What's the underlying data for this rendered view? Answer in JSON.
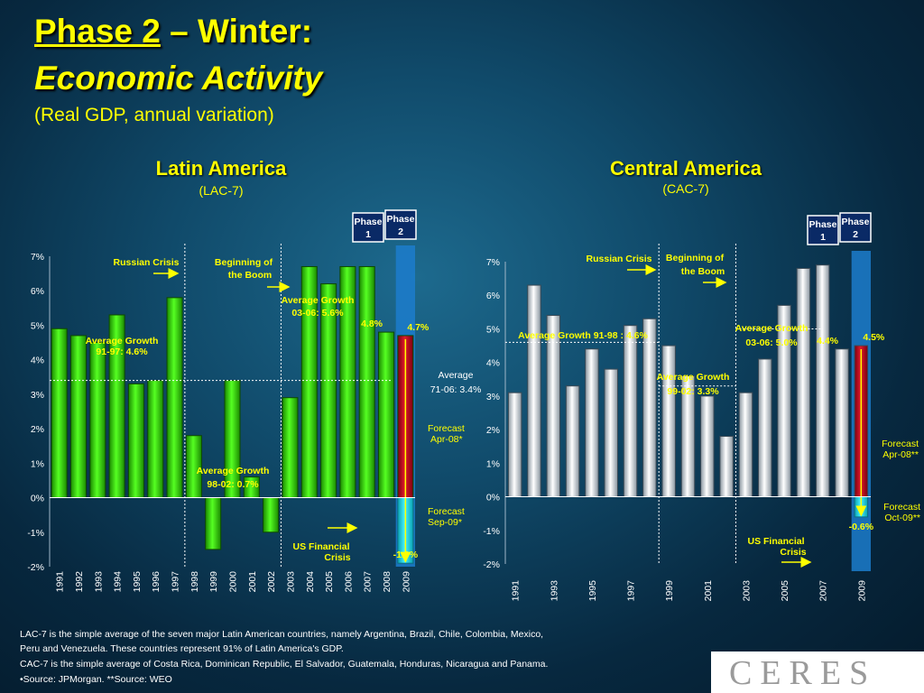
{
  "title": {
    "phase": "Phase 2",
    "rest": " – Winter:",
    "line2": "Economic Activity",
    "line3": "(Real GDP, annual variation)"
  },
  "footnotes": [
    "LAC-7 is the simple average of the seven major Latin American countries, namely Argentina, Brazil, Chile, Colombia, Mexico,",
    "Peru and Venezuela. These countries represent 91% of Latin America's GDP.",
    "CAC-7 is the simple average of Costa Rica, Dominican Republic, El Salvador, Guatemala, Honduras, Nicaragua and Panama.",
    "•Source: JPMorgan. **Source: WEO"
  ],
  "logo_text": "CERES",
  "colors": {
    "lac_bar": "#33dd00",
    "cac_bar": "#dde3e8",
    "forecast_red": "#cc1122",
    "forecast_cyan": "#22ddee",
    "title": "#ffff00",
    "phase_band": "#1c7ccc"
  },
  "chart_data": [
    {
      "type": "bar",
      "title": "Latin America",
      "subtitle": "(LAC-7)",
      "categories": [
        "1991",
        "1992",
        "1993",
        "1994",
        "1995",
        "1996",
        "1997",
        "1998",
        "1999",
        "2000",
        "2001",
        "2002",
        "2003",
        "2004",
        "2005",
        "2006",
        "2007",
        "2008",
        "2009"
      ],
      "values": [
        4.9,
        4.7,
        4.5,
        5.3,
        3.3,
        3.4,
        5.8,
        1.8,
        -1.5,
        3.4,
        0.6,
        -1.0,
        2.9,
        6.7,
        6.2,
        6.7,
        6.7,
        4.8,
        4.7
      ],
      "forecast_revision": {
        "category": "2009",
        "from": 4.7,
        "to": -1.9,
        "labels": [
          "4.7%",
          "-1.9%"
        ]
      },
      "ylim": [
        -2,
        7
      ],
      "yticks": [
        "7%",
        "6%",
        "5%",
        "4%",
        "3%",
        "2%",
        "1%",
        "0%",
        "-1%",
        "-2%"
      ],
      "data_labels": [
        "4.8%"
      ],
      "annotations": {
        "russian_crisis": "Russian Crisis",
        "beginning_boom": [
          "Beginning of",
          "the Boom"
        ],
        "avg_03_06": [
          "Average Growth",
          "03-06: 5.6%"
        ],
        "avg_91_97": [
          "Average Growth",
          "91-97: 4.6%"
        ],
        "avg_98_02": [
          "Average Growth",
          "98-02: 0.7%"
        ],
        "avg_71_06": [
          "Average",
          "71-06: 3.4%"
        ],
        "forecast_apr": [
          "Forecast",
          "Apr-08*"
        ],
        "forecast_sep": [
          "Forecast",
          "Sep-09*"
        ],
        "us_crisis": [
          "US Financial",
          "Crisis"
        ],
        "phase1": [
          "Phase",
          "1"
        ],
        "phase2": [
          "Phase",
          "2"
        ]
      }
    },
    {
      "type": "bar",
      "title": "Central America",
      "subtitle": "(CAC-7)",
      "categories": [
        "1991",
        "1992",
        "1993",
        "1994",
        "1995",
        "1996",
        "1997",
        "1998",
        "1999",
        "2000",
        "2001",
        "2002",
        "2003",
        "2004",
        "2005",
        "2006",
        "2007",
        "2008",
        "2009"
      ],
      "x_tick_labels": [
        "1991",
        "1993",
        "1995",
        "1997",
        "1999",
        "2001",
        "2003",
        "2005",
        "2007",
        "2009"
      ],
      "values": [
        3.1,
        6.3,
        5.4,
        3.3,
        4.4,
        3.8,
        5.1,
        5.3,
        4.5,
        3.6,
        3.0,
        1.8,
        3.1,
        4.1,
        5.7,
        6.8,
        6.9,
        4.4,
        4.5
      ],
      "forecast_revision": {
        "category": "2009",
        "from": 4.5,
        "to": -0.6,
        "labels": [
          "4.5%",
          "-0.6%"
        ]
      },
      "ylim": [
        -2,
        7
      ],
      "yticks": [
        "7%",
        "6%",
        "5%",
        "4%",
        "3%",
        "2%",
        "1%",
        "0%",
        "-1%",
        "-2%"
      ],
      "data_labels": [
        "4.4%"
      ],
      "annotations": {
        "russian_crisis": "Russian Crisis",
        "beginning_boom": [
          "Beginning of",
          "the Boom"
        ],
        "avg_91_98": "Average Growth 91-98 : 4.6%",
        "avg_03_06": [
          "Average Growth",
          "03-06: 5.0%"
        ],
        "avg_99_02": [
          "Average Growth",
          "99-02: 3.3%"
        ],
        "forecast_apr": [
          "Forecast",
          "Apr-08**"
        ],
        "forecast_oct": [
          "Forecast",
          "Oct-09**"
        ],
        "us_crisis": [
          "US Financial",
          "Crisis"
        ],
        "phase1": [
          "Phase",
          "1"
        ],
        "phase2": [
          "Phase",
          "2"
        ]
      }
    }
  ]
}
